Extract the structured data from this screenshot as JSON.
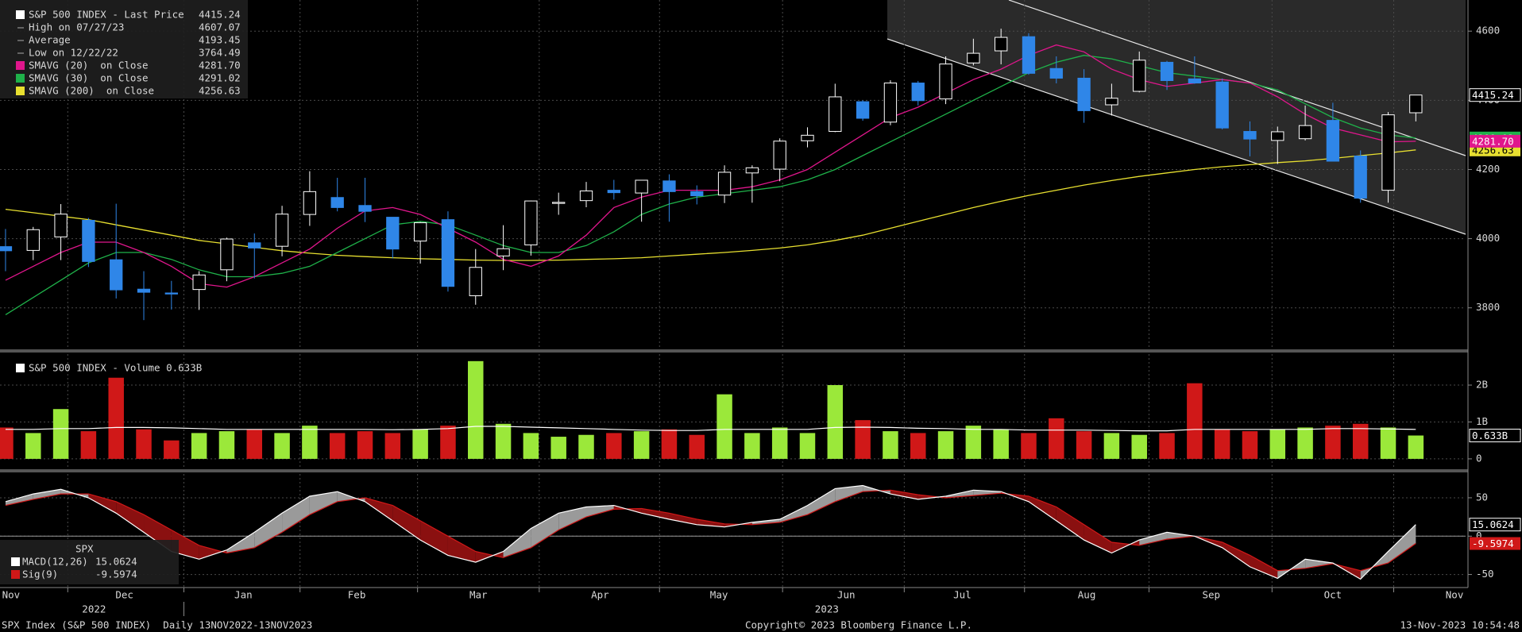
{
  "chart_data": [
    {
      "type": "candlestick",
      "stats": [
        {
          "text": "S&P 500 INDEX - Last Price",
          "value": 4415.24
        },
        {
          "text": "High on 07/27/23",
          "value": 4607.07
        },
        {
          "text": "Average",
          "value": 4193.45
        },
        {
          "text": "Low on 12/22/22",
          "value": 3764.49
        }
      ],
      "up_color": "#ffffff",
      "down_color": "#2f86e8",
      "open": [
        3977,
        3966,
        4005,
        4053,
        3939,
        3854,
        3843,
        3853,
        3910,
        3988,
        3978,
        4070,
        4119,
        4096,
        4062,
        3993,
        4055,
        3835,
        3950,
        3982,
        4102,
        4110,
        4140,
        4132,
        4167,
        4136,
        4126,
        4190,
        4201,
        4283,
        4310,
        4396,
        4337,
        4450,
        4404,
        4508,
        4543,
        4584,
        4492,
        4464,
        4387,
        4426,
        4510,
        4462,
        4453,
        4310,
        4284,
        4289,
        4342,
        4239,
        4140,
        4364
      ],
      "high": [
        4028,
        4034,
        4100,
        4060,
        4101,
        3906,
        3878,
        3906,
        4003,
        4015,
        4095,
        4195,
        4176,
        4176,
        4062,
        4048,
        4079,
        3970,
        4039,
        4110,
        4133,
        4164,
        4170,
        4170,
        4186,
        4154,
        4212,
        4212,
        4290,
        4322,
        4448,
        4400,
        4458,
        4456,
        4527,
        4578,
        4607.07,
        4594,
        4527,
        4490,
        4448,
        4541,
        4514,
        4527,
        4463,
        4339,
        4324,
        4385,
        4393,
        4255,
        4366,
        4415.24
      ],
      "low": [
        3906,
        3938,
        3938,
        3918,
        3827,
        3764.49,
        3795,
        3794,
        3877,
        3885,
        3949,
        4037,
        4079,
        4048,
        3943,
        3928,
        3847,
        3809,
        3909,
        3951,
        4069,
        4091,
        4113,
        4049,
        4049,
        4099,
        4103,
        4104,
        4166,
        4264,
        4308,
        4341,
        4328,
        4385,
        4389,
        4501,
        4504,
        4474,
        4449,
        4335,
        4356,
        4423,
        4430,
        4448,
        4316,
        4238,
        4216,
        4284,
        4223,
        4104,
        4104,
        4339
      ],
      "close": [
        3965,
        4026,
        4071,
        3934,
        3852,
        3845,
        3840,
        3895,
        3999,
        3973,
        4071,
        4136,
        4090,
        4079,
        3970,
        4046,
        3862,
        3917,
        3971,
        4109,
        4105,
        4138,
        4133,
        4169,
        4136,
        4124,
        4192,
        4205,
        4282,
        4299,
        4410,
        4348,
        4450,
        4399,
        4505,
        4536,
        4582,
        4478,
        4464,
        4370,
        4406,
        4516,
        4457,
        4450,
        4320,
        4288,
        4309,
        4327,
        4224,
        4117,
        4358,
        4415.24
      ],
      "series": [
        {
          "name": "SMAVG (20)  on Close",
          "color": "#e0168c",
          "last": 4281.7,
          "last_label": "4281.70",
          "values": [
            3880,
            3920,
            3960,
            3990,
            3990,
            3960,
            3920,
            3870,
            3860,
            3890,
            3930,
            3970,
            4030,
            4080,
            4090,
            4070,
            4030,
            3990,
            3940,
            3920,
            3950,
            4010,
            4090,
            4120,
            4140,
            4140,
            4140,
            4150,
            4170,
            4200,
            4250,
            4300,
            4350,
            4380,
            4420,
            4460,
            4490,
            4530,
            4560,
            4540,
            4490,
            4460,
            4440,
            4450,
            4460,
            4450,
            4410,
            4360,
            4320,
            4300,
            4280,
            4281.7
          ]
        },
        {
          "name": "SMAVG (30)  on Close",
          "color": "#1fb24a",
          "last": 4291.02,
          "values": [
            3780,
            3830,
            3880,
            3930,
            3960,
            3960,
            3940,
            3910,
            3890,
            3890,
            3900,
            3920,
            3960,
            4000,
            4040,
            4050,
            4040,
            4010,
            3980,
            3960,
            3960,
            3980,
            4020,
            4070,
            4100,
            4120,
            4130,
            4140,
            4150,
            4170,
            4200,
            4240,
            4280,
            4320,
            4360,
            4400,
            4440,
            4480,
            4510,
            4530,
            4520,
            4500,
            4480,
            4470,
            4460,
            4450,
            4430,
            4390,
            4350,
            4320,
            4300,
            4291.02
          ]
        },
        {
          "name": "SMAVG (200)  on Close",
          "color": "#e8e030",
          "last": 4256.63,
          "values": [
            4085,
            4075,
            4065,
            4055,
            4040,
            4025,
            4010,
            3995,
            3985,
            3975,
            3965,
            3958,
            3952,
            3948,
            3945,
            3942,
            3940,
            3938,
            3937,
            3937,
            3938,
            3940,
            3942,
            3945,
            3950,
            3955,
            3960,
            3966,
            3973,
            3982,
            3995,
            4010,
            4030,
            4050,
            4070,
            4090,
            4108,
            4125,
            4140,
            4155,
            4168,
            4180,
            4190,
            4200,
            4208,
            4214,
            4220,
            4225,
            4232,
            4240,
            4248,
            4256.63
          ]
        }
      ],
      "ylim": [
        3680,
        4690
      ],
      "yticks": [
        3800,
        4000,
        4200,
        4400,
        4600
      ],
      "grid": true
    },
    {
      "type": "bar",
      "title": "S&P 500 INDEX - Volume 0.633B",
      "up_color": "#9be83a",
      "down_color": "#d01818",
      "values": [
        0.85,
        0.7,
        1.35,
        0.75,
        2.2,
        0.8,
        0.5,
        0.7,
        0.75,
        0.8,
        0.7,
        0.9,
        0.7,
        0.75,
        0.7,
        0.8,
        0.9,
        2.65,
        0.95,
        0.7,
        0.6,
        0.65,
        0.7,
        0.75,
        0.8,
        0.65,
        1.75,
        0.7,
        0.85,
        0.7,
        2.0,
        1.05,
        0.75,
        0.7,
        0.75,
        0.9,
        0.8,
        0.7,
        1.1,
        0.75,
        0.7,
        0.65,
        0.7,
        2.05,
        0.8,
        0.75,
        0.8,
        0.85,
        0.9,
        0.95,
        0.85,
        0.633
      ],
      "last": {
        "value": 0.633,
        "label": "0.633B"
      },
      "average_line": {
        "color": "#ffffff",
        "values": [
          0.8,
          0.8,
          0.82,
          0.82,
          0.85,
          0.85,
          0.84,
          0.82,
          0.8,
          0.8,
          0.8,
          0.8,
          0.8,
          0.8,
          0.79,
          0.8,
          0.82,
          0.88,
          0.88,
          0.86,
          0.84,
          0.82,
          0.8,
          0.78,
          0.77,
          0.77,
          0.8,
          0.8,
          0.8,
          0.8,
          0.85,
          0.86,
          0.85,
          0.83,
          0.82,
          0.8,
          0.8,
          0.78,
          0.78,
          0.78,
          0.77,
          0.76,
          0.76,
          0.8,
          0.8,
          0.8,
          0.8,
          0.8,
          0.82,
          0.82,
          0.81,
          0.8
        ]
      },
      "ylim": [
        -0.26,
        2.84
      ],
      "yticks": [
        0,
        {
          "value": 1,
          "label": "1B"
        },
        {
          "value": 2,
          "label": "2B"
        }
      ],
      "grid": true
    },
    {
      "type": "line",
      "title": "SPX",
      "series": [
        {
          "name": "MACD(12,26)",
          "color": "#ffffff",
          "last": 15.0624,
          "values": [
            45,
            55,
            61,
            50,
            30,
            5,
            -20,
            -30,
            -18,
            5,
            30,
            52,
            58,
            45,
            20,
            -5,
            -25,
            -34,
            -20,
            10,
            30,
            38,
            40,
            30,
            22,
            15,
            12,
            18,
            22,
            40,
            62,
            66,
            55,
            48,
            52,
            60,
            58,
            45,
            20,
            -5,
            -22,
            -5,
            5,
            0,
            -15,
            -40,
            -55,
            -30,
            -35,
            -56,
            -20,
            15.0624
          ]
        },
        {
          "name": "Sig(9)",
          "color": "#d01818",
          "last": -9.5974,
          "values": [
            40,
            48,
            55,
            55,
            45,
            28,
            8,
            -12,
            -22,
            -15,
            5,
            28,
            45,
            50,
            40,
            20,
            0,
            -20,
            -28,
            -15,
            8,
            25,
            35,
            36,
            30,
            22,
            16,
            15,
            18,
            28,
            45,
            58,
            60,
            54,
            50,
            53,
            56,
            52,
            38,
            15,
            -8,
            -12,
            -4,
            0,
            -8,
            -25,
            -45,
            -42,
            -36,
            -45,
            -35,
            -9.5974
          ]
        }
      ],
      "ylim": [
        -67,
        81
      ],
      "yticks": [
        -50,
        0,
        50
      ],
      "grid": true,
      "xlim": [
        -0.2,
        52.8
      ],
      "xticks": [
        {
          "value": 0.2,
          "label": "Nov"
        },
        {
          "value": 4.3,
          "label": "Dec"
        },
        {
          "value": 8.6,
          "label": "Jan"
        },
        {
          "value": 12.7,
          "label": "Feb"
        },
        {
          "value": 17.1,
          "label": "Mar"
        },
        {
          "value": 21.5,
          "label": "Apr"
        },
        {
          "value": 25.8,
          "label": "May"
        },
        {
          "value": 30.4,
          "label": "Jun"
        },
        {
          "value": 34.6,
          "label": "Jul"
        },
        {
          "value": 39.1,
          "label": "Aug"
        },
        {
          "value": 43.6,
          "label": "Sep"
        },
        {
          "value": 48.0,
          "label": "Oct"
        },
        {
          "value": 52.4,
          "label": "Nov"
        }
      ],
      "year_labels": [
        {
          "value": 3.2,
          "label": "2022"
        },
        {
          "value": 29.7,
          "label": "2023"
        }
      ]
    }
  ],
  "footer": {
    "left": "SPX Index (S&P 500 INDEX)  Daily 13NOV2022-13NOV2023",
    "center": "Copyright© 2023 Bloomberg Finance L.P.",
    "right": "13-Nov-2023 10:54:48"
  }
}
